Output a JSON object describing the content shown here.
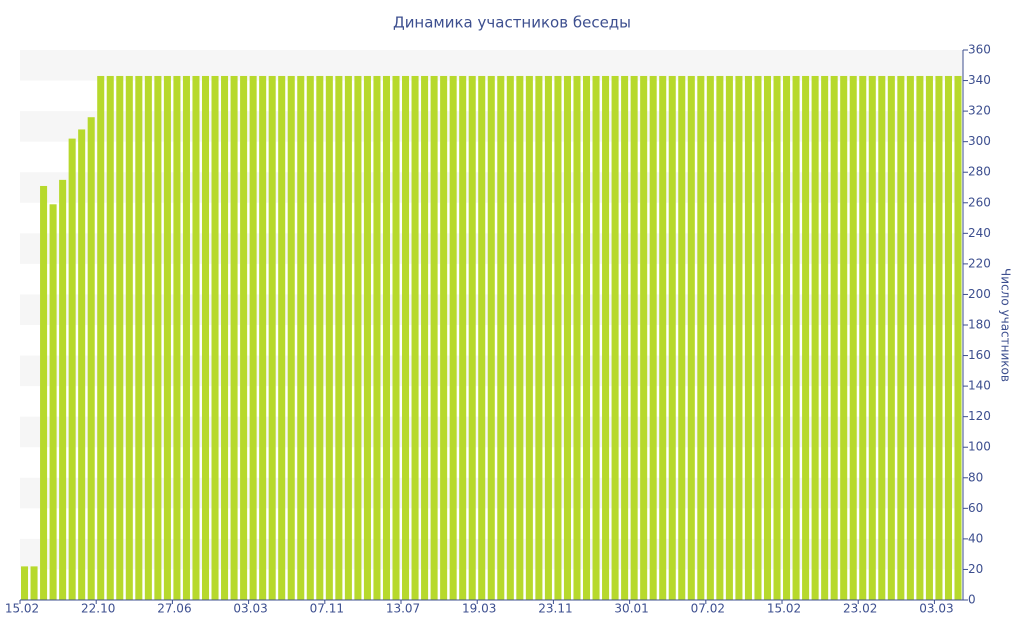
{
  "chart_data": {
    "type": "bar",
    "title": "Динамика участников беседы",
    "y_label": "Число участников",
    "categories": [
      "15.02",
      null,
      null,
      null,
      null,
      null,
      null,
      null,
      "22.10",
      null,
      null,
      null,
      null,
      null,
      null,
      null,
      "27.06",
      null,
      null,
      null,
      null,
      null,
      null,
      null,
      "03.03",
      null,
      null,
      null,
      null,
      null,
      null,
      null,
      "07.11",
      null,
      null,
      null,
      null,
      null,
      null,
      null,
      "13.07",
      null,
      null,
      null,
      null,
      null,
      null,
      null,
      "19.03",
      null,
      null,
      null,
      null,
      null,
      null,
      null,
      "23.11",
      null,
      null,
      null,
      null,
      null,
      null,
      null,
      "30.01",
      null,
      null,
      null,
      null,
      null,
      null,
      null,
      "07.02",
      null,
      null,
      null,
      null,
      null,
      null,
      null,
      "15.02",
      null,
      null,
      null,
      null,
      null,
      null,
      null,
      "23.02",
      null,
      null,
      null,
      null,
      null,
      null,
      null,
      "03.03",
      null,
      null
    ],
    "values": [
      22,
      22,
      271,
      259,
      275,
      302,
      308,
      316,
      343,
      343,
      343,
      343,
      343,
      343,
      343,
      343,
      343,
      343,
      343,
      343,
      343,
      343,
      343,
      343,
      343,
      343,
      343,
      343,
      343,
      343,
      343,
      343,
      343,
      343,
      343,
      343,
      343,
      343,
      343,
      343,
      343,
      343,
      343,
      343,
      343,
      343,
      343,
      343,
      343,
      343,
      343,
      343,
      343,
      343,
      343,
      343,
      343,
      343,
      343,
      343,
      343,
      343,
      343,
      343,
      343,
      343,
      343,
      343,
      343,
      343,
      343,
      343,
      343,
      343,
      343,
      343,
      343,
      343,
      343,
      343,
      343,
      343,
      343,
      343,
      343,
      343,
      343,
      343,
      343,
      343,
      343,
      343,
      343,
      343,
      343,
      343,
      343,
      343,
      343
    ],
    "color": "#b7d92c",
    "ylim": [
      0,
      360
    ],
    "yticks": [
      0,
      20,
      40,
      60,
      80,
      100,
      120,
      140,
      160,
      180,
      200,
      220,
      240,
      260,
      280,
      300,
      320,
      340,
      360
    ],
    "grid": true,
    "y_axis_side": "right"
  }
}
